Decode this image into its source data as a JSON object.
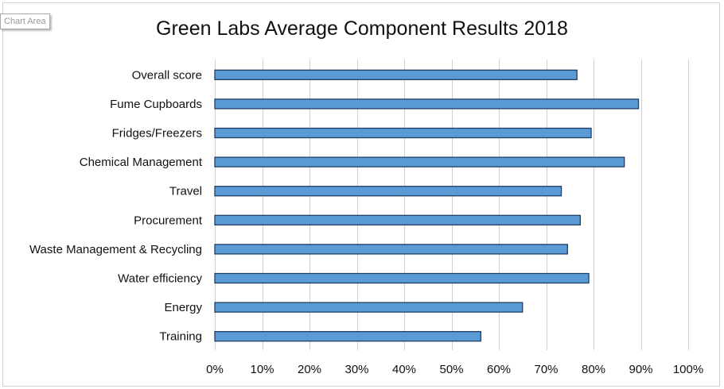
{
  "tooltip": {
    "label": "Chart Area"
  },
  "chart_data": {
    "type": "bar",
    "orientation": "horizontal",
    "title": "Green Labs Average Component Results 2018",
    "xlabel": "",
    "ylabel": "",
    "categories": [
      "Overall score",
      "Fume Cupboards",
      "Fridges/Freezers",
      "Chemical Management",
      "Travel",
      "Procurement",
      "Waste Management & Recycling",
      "Water efficiency",
      "Energy",
      "Training"
    ],
    "values": [
      0.765,
      0.895,
      0.795,
      0.865,
      0.732,
      0.772,
      0.745,
      0.79,
      0.65,
      0.562
    ],
    "xlim": [
      0,
      1
    ],
    "x_ticks": [
      0,
      0.1,
      0.2,
      0.3,
      0.4,
      0.5,
      0.6,
      0.7,
      0.8,
      0.9,
      1.0
    ],
    "x_tick_labels": [
      "0%",
      "10%",
      "20%",
      "30%",
      "40%",
      "50%",
      "60%",
      "70%",
      "80%",
      "90%",
      "100%"
    ],
    "grid": true,
    "legend": "none",
    "colors": {
      "bar_fill": "#5b9bd5",
      "bar_stroke": "#1f3f66",
      "grid": "#d0d0d0"
    }
  }
}
